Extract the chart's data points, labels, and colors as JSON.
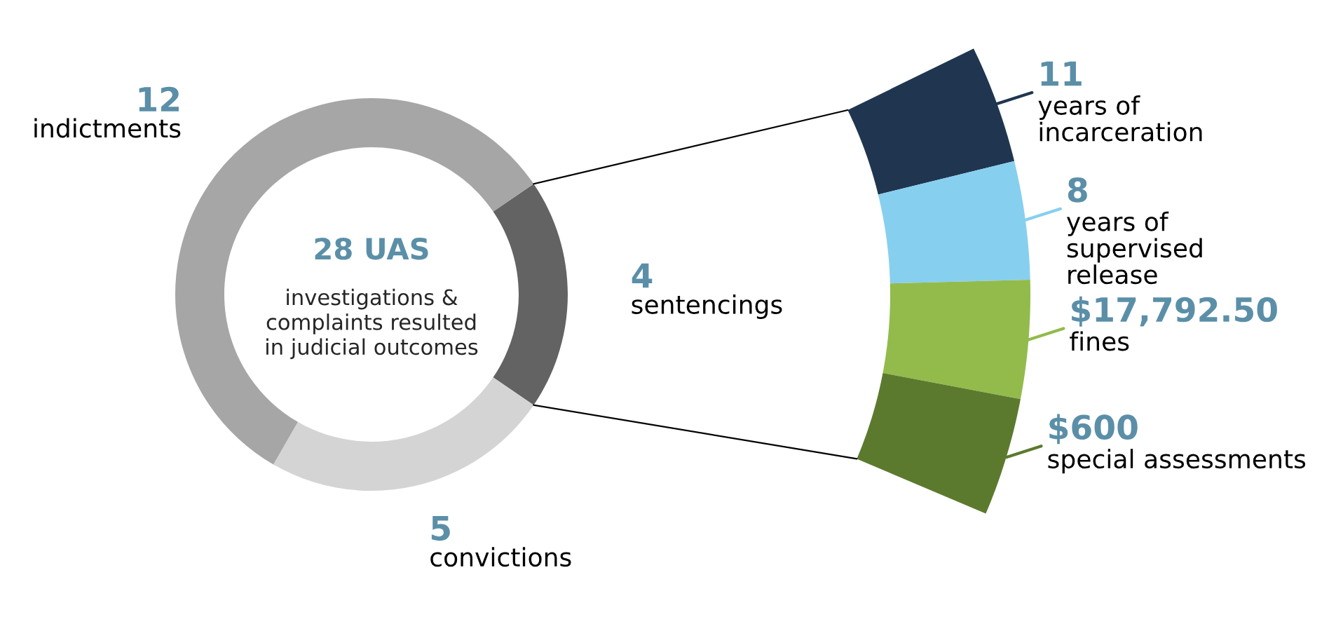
{
  "chart_data": [
    {
      "type": "donut",
      "title": "28 UAS",
      "subtitle": "investigations &\ncomplaints resulted\nin judicial outcomes",
      "categories": [
        "sentencings",
        "convictions",
        "indictments"
      ],
      "values": [
        4,
        5,
        12
      ],
      "colors": [
        "#636363",
        "#d4d4d4",
        "#a6a6a6"
      ],
      "data_labels": true,
      "legend": false
    },
    {
      "type": "other",
      "categories": [
        "years of\nincarceration",
        "years of\nsupervised\nrelease",
        "fines",
        "special assessments"
      ],
      "value_labels": [
        "11",
        "8",
        "$17,792.50",
        "$600"
      ],
      "colors": [
        "#203650",
        "#87cfef",
        "#92bb4b",
        "#5c7a2e"
      ]
    }
  ]
}
